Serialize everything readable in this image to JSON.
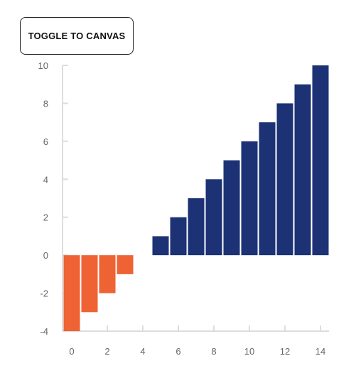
{
  "toolbar": {
    "toggle_label": "TOGGLE TO CANVAS"
  },
  "chart_data": {
    "type": "bar",
    "x": [
      0,
      1,
      2,
      3,
      5,
      6,
      7,
      8,
      9,
      10,
      11,
      12,
      13,
      14
    ],
    "values": [
      -4,
      -3,
      -2,
      -1,
      1,
      2,
      3,
      4,
      5,
      6,
      7,
      8,
      9,
      10
    ],
    "xlim": [
      -0.5,
      14.5
    ],
    "ylim": [
      -4,
      10
    ],
    "xticks": [
      0,
      2,
      4,
      6,
      8,
      10,
      12,
      14
    ],
    "yticks": [
      -4,
      -2,
      0,
      2,
      4,
      6,
      8,
      10
    ],
    "colors": {
      "negative": "#ef6234",
      "positive": "#1c3275",
      "axis": "#dddddd",
      "tick_label": "#666666"
    },
    "grid": false,
    "legend": "none",
    "title": "",
    "xlabel": "",
    "ylabel": ""
  }
}
